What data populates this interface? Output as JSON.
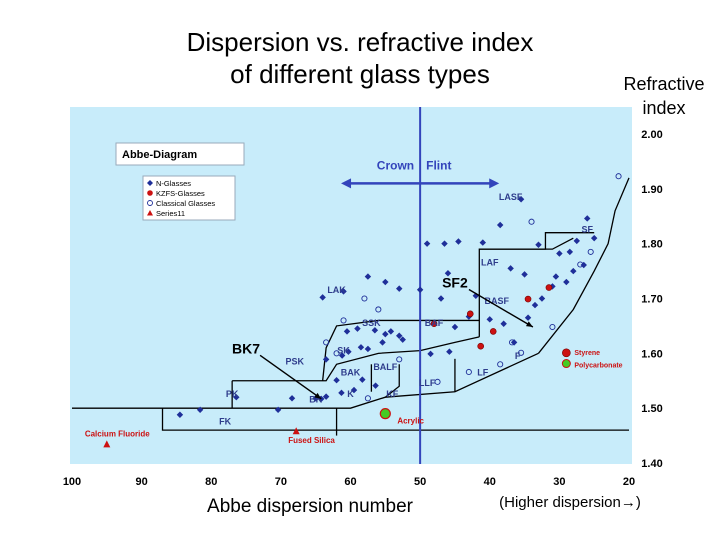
{
  "title_line1": "Dispersion vs. refractive index",
  "title_line2": "of different glass types",
  "refractive_label_line1": "Refractive",
  "refractive_label_line2": "index",
  "x_axis_title": "Abbe dispersion number",
  "x_axis_note": "(Higher dispersion→)",
  "colors": {
    "plot_bg": "#c8ecfa",
    "n_glass": "#1f2f99",
    "kzfs": "#cc1111",
    "classical": "#1f2f99",
    "series11": "#cc1111",
    "highlight": "#44cc22",
    "divider": "#3344bb",
    "region_lines": "#000000"
  },
  "chart_data": {
    "type": "scatter",
    "x_range": [
      100,
      20
    ],
    "y_range": [
      1.4,
      2.0
    ],
    "x_ticks": [
      "100",
      "90",
      "80",
      "70",
      "60",
      "50",
      "40",
      "30",
      "20"
    ],
    "y_ticks": [
      "2.00",
      "1.90",
      "1.80",
      "1.70",
      "1.60",
      "1.50",
      "1.40"
    ],
    "diagram_title": "Abbe-Diagram",
    "legend": [
      "N-Glasses",
      "KZFS-Glasses",
      "Classical Glasses",
      "Series11"
    ],
    "divider_label_left": "Crown",
    "divider_label_right": "Flint",
    "regions": [
      {
        "label": "LASF",
        "x": 37,
        "y": 1.88
      },
      {
        "label": "SF",
        "x": 26,
        "y": 1.82
      },
      {
        "label": "LAF",
        "x": 40,
        "y": 1.76
      },
      {
        "label": "LAK",
        "x": 62,
        "y": 1.71
      },
      {
        "label": "BASF",
        "x": 39,
        "y": 1.69
      },
      {
        "label": "SSK",
        "x": 57,
        "y": 1.65
      },
      {
        "label": "BAF",
        "x": 48,
        "y": 1.65
      },
      {
        "label": "PSK",
        "x": 68,
        "y": 1.58
      },
      {
        "label": "SK",
        "x": 61,
        "y": 1.6
      },
      {
        "label": "BALF",
        "x": 55,
        "y": 1.57
      },
      {
        "label": "BAK",
        "x": 60,
        "y": 1.56
      },
      {
        "label": "LF",
        "x": 41,
        "y": 1.56
      },
      {
        "label": "F",
        "x": 36,
        "y": 1.59
      },
      {
        "label": "LLF",
        "x": 49,
        "y": 1.54
      },
      {
        "label": "PK",
        "x": 77,
        "y": 1.52
      },
      {
        "label": "BK",
        "x": 65,
        "y": 1.51
      },
      {
        "label": "K",
        "x": 60,
        "y": 1.52
      },
      {
        "label": "KF",
        "x": 54,
        "y": 1.52
      },
      {
        "label": "FK",
        "x": 78,
        "y": 1.47
      }
    ],
    "callouts": [
      {
        "label": "SF2",
        "x": 45,
        "y": 1.72,
        "target_x": 33.8,
        "target_y": 1.648
      },
      {
        "label": "BK7",
        "x": 75,
        "y": 1.6,
        "target_x": 64.2,
        "target_y": 1.517
      }
    ],
    "annotations": [
      {
        "label": "Calcium Fluoride",
        "x": 95,
        "y": 1.434,
        "marker": "triangle"
      },
      {
        "label": "Fused Silica",
        "x": 67.8,
        "y": 1.458,
        "marker": "triangle"
      },
      {
        "label": "Acrylic",
        "x": 55,
        "y": 1.49,
        "marker": "green-circle"
      },
      {
        "label": "Styrene",
        "x": 29,
        "y": 1.59,
        "marker": "red-circle"
      },
      {
        "label": "Polycarbonate",
        "x": 29,
        "y": 1.585,
        "marker": "green-circle"
      }
    ],
    "series": [
      {
        "name": "N-Glasses",
        "points": [
          [
            84.5,
            1.488
          ],
          [
            81.6,
            1.497
          ],
          [
            76.4,
            1.52
          ],
          [
            70.4,
            1.497
          ],
          [
            68.4,
            1.518
          ],
          [
            65.0,
            1.518
          ],
          [
            64.2,
            1.517
          ],
          [
            63.5,
            1.521
          ],
          [
            61.3,
            1.528
          ],
          [
            59.5,
            1.533
          ],
          [
            56.4,
            1.541
          ],
          [
            58.3,
            1.552
          ],
          [
            62.0,
            1.551
          ],
          [
            63.5,
            1.589
          ],
          [
            61.2,
            1.596
          ],
          [
            60.3,
            1.603
          ],
          [
            58.5,
            1.611
          ],
          [
            57.5,
            1.608
          ],
          [
            55.4,
            1.62
          ],
          [
            53.0,
            1.632
          ],
          [
            55.0,
            1.635
          ],
          [
            56.5,
            1.642
          ],
          [
            59.0,
            1.645
          ],
          [
            60.5,
            1.64
          ],
          [
            54.2,
            1.64
          ],
          [
            52.5,
            1.625
          ],
          [
            48.5,
            1.599
          ],
          [
            45.8,
            1.603
          ],
          [
            45.0,
            1.648
          ],
          [
            43.0,
            1.667
          ],
          [
            40.0,
            1.662
          ],
          [
            38.0,
            1.654
          ],
          [
            36.5,
            1.62
          ],
          [
            42.0,
            1.705
          ],
          [
            47.0,
            1.7
          ],
          [
            50.0,
            1.716
          ],
          [
            55.0,
            1.73
          ],
          [
            57.5,
            1.74
          ],
          [
            61.0,
            1.713
          ],
          [
            64.0,
            1.702
          ],
          [
            53.0,
            1.718
          ],
          [
            46.0,
            1.746
          ],
          [
            44.5,
            1.804
          ],
          [
            46.5,
            1.8
          ],
          [
            49.0,
            1.8
          ],
          [
            41.0,
            1.802
          ],
          [
            35.0,
            1.744
          ],
          [
            37.0,
            1.755
          ],
          [
            33.0,
            1.798
          ],
          [
            38.5,
            1.834
          ],
          [
            35.5,
            1.881
          ],
          [
            30.0,
            1.782
          ],
          [
            28.5,
            1.785
          ],
          [
            27.5,
            1.805
          ],
          [
            26.0,
            1.846
          ],
          [
            25.0,
            1.81
          ],
          [
            30.5,
            1.74
          ],
          [
            32.5,
            1.7
          ],
          [
            31.0,
            1.722
          ],
          [
            29.0,
            1.73
          ],
          [
            28.0,
            1.75
          ],
          [
            33.5,
            1.688
          ],
          [
            34.5,
            1.665
          ],
          [
            26.5,
            1.761
          ]
        ]
      },
      {
        "name": "KZFS-Glasses",
        "points": [
          [
            34.5,
            1.699
          ],
          [
            41.3,
            1.613
          ],
          [
            48.0,
            1.654
          ],
          [
            42.8,
            1.672
          ],
          [
            31.5,
            1.72
          ],
          [
            39.5,
            1.64
          ]
        ]
      },
      {
        "name": "Classical Glasses",
        "points": [
          [
            21.5,
            1.923
          ],
          [
            25.5,
            1.785
          ],
          [
            27.0,
            1.762
          ],
          [
            31.0,
            1.648
          ],
          [
            35.5,
            1.601
          ],
          [
            36.8,
            1.62
          ],
          [
            38.5,
            1.58
          ],
          [
            43.0,
            1.566
          ],
          [
            47.5,
            1.548
          ],
          [
            57.5,
            1.518
          ],
          [
            62.0,
            1.6
          ],
          [
            63.5,
            1.62
          ],
          [
            61.0,
            1.66
          ],
          [
            56.0,
            1.68
          ],
          [
            58.0,
            1.7
          ],
          [
            34.0,
            1.84
          ],
          [
            53.0,
            1.589
          ]
        ]
      },
      {
        "name": "Series11",
        "points": [
          [
            95.0,
            1.434
          ],
          [
            67.8,
            1.458
          ]
        ]
      }
    ]
  }
}
